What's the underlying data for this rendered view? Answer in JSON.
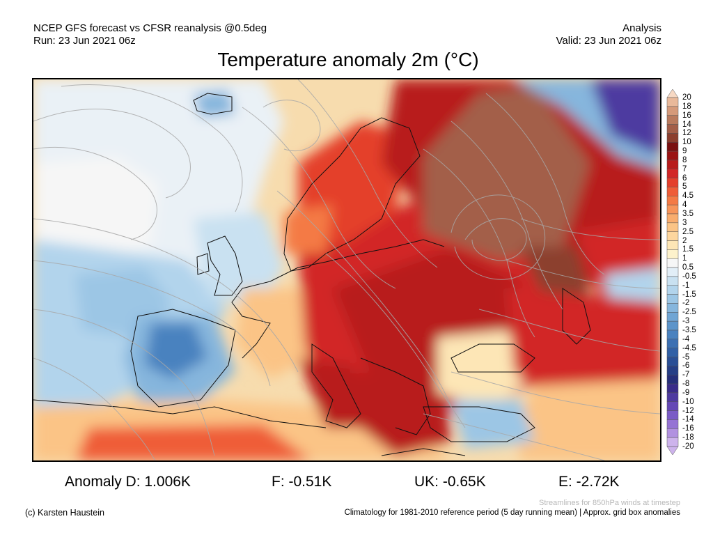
{
  "header": {
    "line1_left": "NCEP GFS forecast vs CFSR reanalysis @0.5deg",
    "line2_left": "Run: 23 Jun 2021 06z",
    "line1_right": "Analysis",
    "line2_right": "Valid: 23 Jun 2021 06z"
  },
  "title": "Temperature anomaly 2m (°C)",
  "colorbar": {
    "ticks": [
      "20",
      "18",
      "16",
      "14",
      "12",
      "10",
      "9",
      "8",
      "7",
      "6",
      "5",
      "4.5",
      "4",
      "3.5",
      "3",
      "2.5",
      "2",
      "1.5",
      "1",
      "0.5",
      "-0.5",
      "-1",
      "-1.5",
      "-2",
      "-2.5",
      "-3",
      "-3.5",
      "-4",
      "-4.5",
      "-5",
      "-6",
      "-7",
      "-8",
      "-9",
      "-10",
      "-12",
      "-14",
      "-16",
      "-18",
      "-20"
    ],
    "colors": [
      "#f7d9c4",
      "#e9b99a",
      "#d59a7a",
      "#b97a5d",
      "#a35e48",
      "#8c3f2e",
      "#7a1010",
      "#9b1414",
      "#b81c1c",
      "#d22727",
      "#e43f2c",
      "#ef5d38",
      "#f47a45",
      "#f7955a",
      "#f9ad6e",
      "#fbc486",
      "#fdd69e",
      "#fde6b6",
      "#fdf2cc",
      "#f6f6f6",
      "#e2eef7",
      "#c9e1f1",
      "#b2d4ec",
      "#9cc6e5",
      "#86b6dd",
      "#70a5d4",
      "#5c94ca",
      "#4a82bf",
      "#3c70b3",
      "#3160a6",
      "#2a4f96",
      "#263f86",
      "#262f7a",
      "#3a2c8a",
      "#4e3aa0",
      "#6448b6",
      "#7a5bc6",
      "#9573d4",
      "#b191e0",
      "#cdb3ec"
    ]
  },
  "stats": {
    "d": "Anomaly D: 1.006K",
    "f": "F: -0.51K",
    "uk": "UK: -0.65K",
    "e": "E: -2.72K"
  },
  "footer": {
    "streamlines": "Streamlines for 850hPa winds at timestep",
    "credit": "(c) Karsten Haustein",
    "climatology": "Climatology for 1981-2010 reference period (5 day running mean) | Approx. grid box anomalies"
  }
}
